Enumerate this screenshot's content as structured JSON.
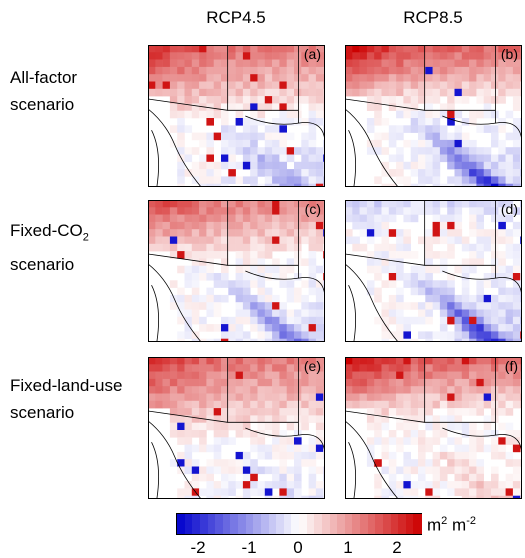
{
  "columns": [
    "RCP4.5",
    "RCP8.5"
  ],
  "rows": [
    {
      "line1": "All-factor",
      "line2": "scenario"
    },
    {
      "line1": "Fixed-CO",
      "sub": "2",
      "line2": "scenario"
    },
    {
      "line1": "Fixed-land-use",
      "line2": "scenario"
    }
  ],
  "panel_tags": [
    "(a)",
    "(b)",
    "(c)",
    "(d)",
    "(e)",
    "(f)"
  ],
  "colorbar": {
    "ticks": [
      "-2",
      "-1",
      "0",
      "1",
      "2"
    ],
    "unit": "m",
    "unit_sup1": "2",
    "unit_mid": " m",
    "unit_sup2": "-2",
    "range": [
      -2.5,
      2.5
    ],
    "colors": [
      "#0000cc",
      "#ffffff",
      "#cc0000"
    ]
  },
  "chart_data": {
    "type": "heatmap",
    "value_range": [
      -2.5,
      2.5
    ],
    "panels": [
      {
        "tag": "(a)",
        "column": "RCP4.5",
        "row": "All-factor scenario",
        "north_pos": 2.2,
        "north_extent": 0.55,
        "central_neg": -0.6,
        "corridor_neg": -1.0
      },
      {
        "tag": "(b)",
        "column": "RCP8.5",
        "row": "All-factor scenario",
        "north_pos": 2.6,
        "north_extent": 0.45,
        "central_neg": -0.7,
        "corridor_neg": -2.4
      },
      {
        "tag": "(c)",
        "column": "RCP4.5",
        "row": "Fixed-CO2 scenario",
        "north_pos": 2.0,
        "north_extent": 0.45,
        "central_neg": -0.4,
        "corridor_neg": -1.6
      },
      {
        "tag": "(d)",
        "column": "RCP8.5",
        "row": "Fixed-CO2 scenario",
        "north_pos": -0.6,
        "north_extent": 0.2,
        "central_neg": -0.8,
        "corridor_neg": -2.5
      },
      {
        "tag": "(e)",
        "column": "RCP4.5",
        "row": "Fixed-land-use scenario",
        "north_pos": 2.2,
        "north_extent": 0.6,
        "central_neg": -0.2,
        "corridor_neg": -0.3
      },
      {
        "tag": "(f)",
        "column": "RCP8.5",
        "row": "Fixed-land-use scenario",
        "north_pos": 2.6,
        "north_extent": 0.45,
        "central_neg": 0.4,
        "corridor_neg": 0.6
      }
    ]
  }
}
